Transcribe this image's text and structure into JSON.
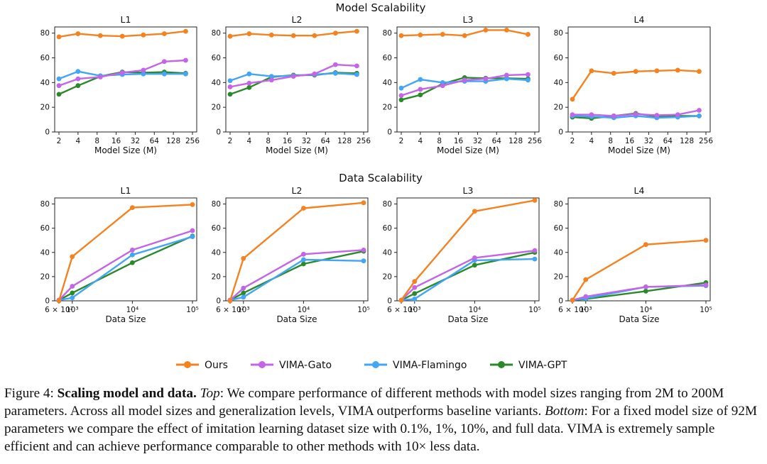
{
  "colors": {
    "Ours": "#f4821f",
    "VIMA-Gato": "#c464e6",
    "VIMA-Flamingo": "#42a5f5",
    "VIMA-GPT": "#2a8a2a"
  },
  "legend": [
    "Ours",
    "VIMA-Gato",
    "VIMA-Flamingo",
    "VIMA-GPT"
  ],
  "sections": [
    {
      "title": "Model Scalability",
      "xlabel": "Model Size (M)"
    },
    {
      "title": "Data Scalability",
      "xlabel": "Data Size"
    }
  ],
  "chart_data": [
    {
      "type": "line",
      "section": "Model Scalability",
      "title": "L1",
      "xlabel": "Model Size (M)",
      "xscale": "log2",
      "xticks": [
        "2",
        "4",
        "8",
        "16",
        "32",
        "64",
        "128",
        "256"
      ],
      "yticks": [
        "0",
        "20",
        "40",
        "60",
        "80"
      ],
      "ylim": [
        0,
        85
      ],
      "x": [
        2,
        4,
        9,
        20,
        43,
        92,
        200
      ],
      "series": [
        {
          "name": "Ours",
          "values": [
            77,
            79.5,
            78,
            77.5,
            78.5,
            79.5,
            81.5
          ]
        },
        {
          "name": "VIMA-Gato",
          "values": [
            37.5,
            43,
            44.5,
            48,
            50,
            57,
            58
          ]
        },
        {
          "name": "VIMA-Flamingo",
          "values": [
            43,
            49,
            45.5,
            46.5,
            47,
            47,
            47
          ]
        },
        {
          "name": "VIMA-GPT",
          "values": [
            30.5,
            37.5,
            45,
            48.5,
            48,
            48.5,
            47.5
          ]
        }
      ]
    },
    {
      "type": "line",
      "section": "Model Scalability",
      "title": "L2",
      "xlabel": "Model Size (M)",
      "xscale": "log2",
      "xticks": [
        "2",
        "4",
        "8",
        "16",
        "32",
        "64",
        "128",
        "256"
      ],
      "yticks": [
        "0",
        "20",
        "40",
        "60",
        "80"
      ],
      "ylim": [
        0,
        85
      ],
      "x": [
        2,
        4,
        9,
        20,
        43,
        92,
        200
      ],
      "series": [
        {
          "name": "Ours",
          "values": [
            77.5,
            79.5,
            78.5,
            78,
            78,
            80,
            81.5
          ]
        },
        {
          "name": "VIMA-Gato",
          "values": [
            36.5,
            39.5,
            42,
            45,
            47,
            54.5,
            53.5
          ]
        },
        {
          "name": "VIMA-Flamingo",
          "values": [
            41.5,
            47,
            45,
            45.5,
            46.5,
            47.5,
            46.5
          ]
        },
        {
          "name": "VIMA-GPT",
          "values": [
            30.5,
            36,
            44.5,
            46,
            46,
            48,
            47.5
          ]
        }
      ]
    },
    {
      "type": "line",
      "section": "Model Scalability",
      "title": "L3",
      "xlabel": "Model Size (M)",
      "xscale": "log2",
      "xticks": [
        "2",
        "4",
        "8",
        "16",
        "32",
        "64",
        "128",
        "256"
      ],
      "yticks": [
        "0",
        "20",
        "40",
        "60",
        "80"
      ],
      "ylim": [
        0,
        85
      ],
      "x": [
        2,
        4,
        9,
        20,
        43,
        92,
        200
      ],
      "series": [
        {
          "name": "Ours",
          "values": [
            78,
            78.5,
            79,
            78,
            82.5,
            82.5,
            79
          ]
        },
        {
          "name": "VIMA-Gato",
          "values": [
            29.5,
            34.5,
            37.5,
            42,
            43,
            46,
            46.5
          ]
        },
        {
          "name": "VIMA-Flamingo",
          "values": [
            35.5,
            42.5,
            40,
            41,
            41,
            43,
            42
          ]
        },
        {
          "name": "VIMA-GPT",
          "values": [
            26,
            30,
            39,
            44,
            43.5,
            43.5,
            43
          ]
        }
      ]
    },
    {
      "type": "line",
      "section": "Model Scalability",
      "title": "L4",
      "xlabel": "Model Size (M)",
      "xscale": "log2",
      "xticks": [
        "2",
        "4",
        "8",
        "16",
        "32",
        "64",
        "128",
        "256"
      ],
      "yticks": [
        "0",
        "20",
        "40",
        "60",
        "80"
      ],
      "ylim": [
        0,
        85
      ],
      "x": [
        2,
        4,
        9,
        20,
        43,
        92,
        200
      ],
      "series": [
        {
          "name": "Ours",
          "values": [
            26.5,
            49.5,
            47.5,
            49,
            49.5,
            50,
            49
          ]
        },
        {
          "name": "VIMA-Gato",
          "values": [
            14,
            14,
            13,
            14.5,
            13.5,
            14,
            17.5
          ]
        },
        {
          "name": "VIMA-Flamingo",
          "values": [
            13,
            12.5,
            11.5,
            13,
            11.5,
            12,
            13
          ]
        },
        {
          "name": "VIMA-GPT",
          "values": [
            12,
            11,
            13,
            15,
            12.5,
            13,
            13
          ]
        }
      ]
    },
    {
      "type": "line",
      "section": "Data Scalability",
      "title": "L1",
      "xlabel": "Data Size",
      "xscale": "log10",
      "xticks": [
        "6 × 10²",
        "10³",
        "10⁴",
        "10⁵"
      ],
      "yticks": [
        "0",
        "20",
        "40",
        "60",
        "80"
      ],
      "ylim": [
        0,
        85
      ],
      "x": [
        600,
        1000,
        10000,
        100000
      ],
      "series": [
        {
          "name": "Ours",
          "values": [
            0,
            36.5,
            77,
            79.5
          ]
        },
        {
          "name": "VIMA-Gato",
          "values": [
            0.5,
            12,
            42,
            58
          ]
        },
        {
          "name": "VIMA-Flamingo",
          "values": [
            0.5,
            2.5,
            38,
            53
          ]
        },
        {
          "name": "VIMA-GPT",
          "values": [
            0.5,
            6.5,
            31.5,
            53.5
          ]
        }
      ]
    },
    {
      "type": "line",
      "section": "Data Scalability",
      "title": "L2",
      "xlabel": "Data Size",
      "xscale": "log10",
      "xticks": [
        "6 × 10²",
        "10³",
        "10⁴",
        "10⁵"
      ],
      "yticks": [
        "0",
        "20",
        "40",
        "60",
        "80"
      ],
      "ylim": [
        0,
        85
      ],
      "x": [
        600,
        1000,
        10000,
        100000
      ],
      "series": [
        {
          "name": "Ours",
          "values": [
            0,
            35,
            76.5,
            81
          ]
        },
        {
          "name": "VIMA-Gato",
          "values": [
            0.5,
            10.5,
            38.5,
            42
          ]
        },
        {
          "name": "VIMA-Flamingo",
          "values": [
            0.5,
            3,
            34,
            33
          ]
        },
        {
          "name": "VIMA-GPT",
          "values": [
            0.5,
            6.5,
            30.5,
            41
          ]
        }
      ]
    },
    {
      "type": "line",
      "section": "Data Scalability",
      "title": "L3",
      "xlabel": "Data Size",
      "xscale": "log10",
      "xticks": [
        "6 × 10²",
        "10³",
        "10⁴",
        "10⁵"
      ],
      "yticks": [
        "0",
        "20",
        "40",
        "60",
        "80"
      ],
      "ylim": [
        0,
        85
      ],
      "x": [
        600,
        1000,
        10000,
        100000
      ],
      "series": [
        {
          "name": "Ours",
          "values": [
            0.5,
            16,
            74,
            83
          ]
        },
        {
          "name": "VIMA-Gato",
          "values": [
            0.5,
            11,
            35.5,
            41.5
          ]
        },
        {
          "name": "VIMA-Flamingo",
          "values": [
            0.5,
            1.5,
            33.5,
            34.5
          ]
        },
        {
          "name": "VIMA-GPT",
          "values": [
            0.5,
            6,
            29.5,
            40
          ]
        }
      ]
    },
    {
      "type": "line",
      "section": "Data Scalability",
      "title": "L4",
      "xlabel": "Data Size",
      "xscale": "log10",
      "xticks": [
        "6 × 10²",
        "10³",
        "10⁴",
        "10⁵"
      ],
      "yticks": [
        "0",
        "20",
        "40",
        "60",
        "80"
      ],
      "ylim": [
        0,
        85
      ],
      "x": [
        600,
        1000,
        10000,
        100000
      ],
      "series": [
        {
          "name": "Ours",
          "values": [
            0.5,
            17.5,
            46.5,
            50
          ]
        },
        {
          "name": "VIMA-Gato",
          "values": [
            0.5,
            3.5,
            11.5,
            13
          ]
        },
        {
          "name": "VIMA-Flamingo",
          "values": [
            0.5,
            2,
            11.5,
            12.5
          ]
        },
        {
          "name": "VIMA-GPT",
          "values": [
            0.5,
            1.5,
            8,
            15
          ]
        }
      ]
    }
  ],
  "caption": {
    "prefix": "Figure 4: ",
    "bold": "Scaling model and data.",
    "top_label": "Top",
    "top_text": ": We compare performance of different methods with model sizes ranging from 2M to 200M parameters. Across all model sizes and generalization levels, VIMA outperforms baseline variants. ",
    "bottom_label": "Bottom",
    "bottom_text": ": For a fixed model size of 92M parameters we compare the effect of imitation learning dataset size with 0.1%, 1%, 10%, and full data. VIMA is extremely sample efficient and can achieve performance comparable to other methods with 10× less data."
  }
}
